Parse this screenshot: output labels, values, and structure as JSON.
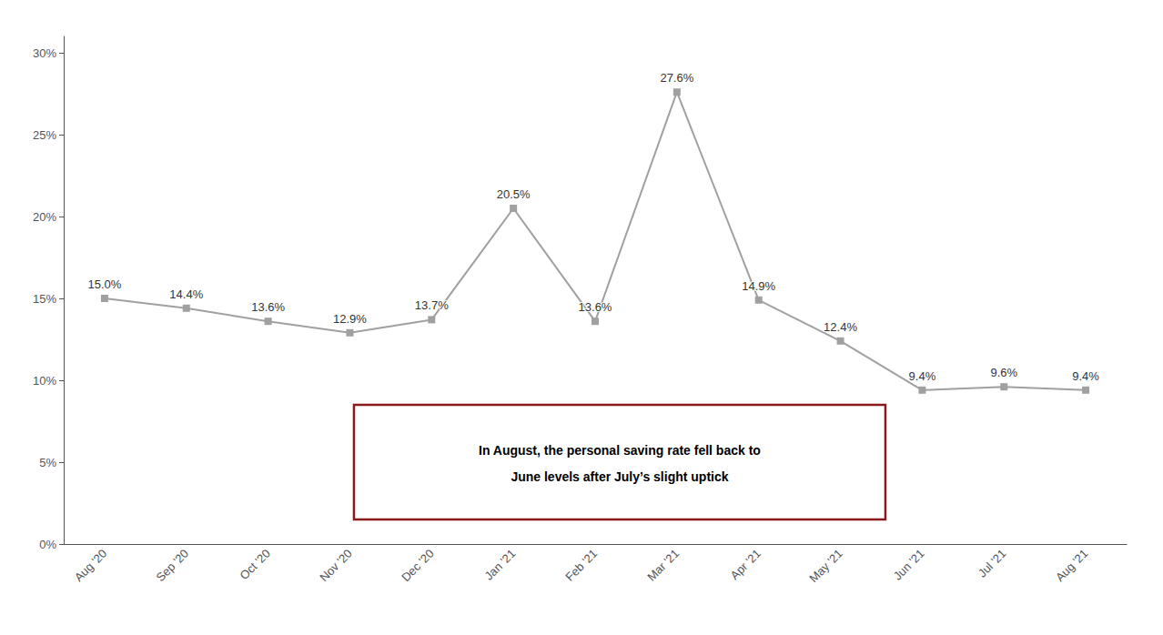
{
  "chart_data": {
    "type": "line",
    "categories": [
      "Aug '20",
      "Sep '20",
      "Oct '20",
      "Nov '20",
      "Dec '20",
      "Jan '21",
      "Feb '21",
      "Mar '21",
      "Apr '21",
      "May '21",
      "Jun '21",
      "Jul '21",
      "Aug '21"
    ],
    "values": [
      15.0,
      14.4,
      13.6,
      12.9,
      13.7,
      20.5,
      13.6,
      27.6,
      14.9,
      12.4,
      9.4,
      9.6,
      9.4
    ],
    "value_labels": [
      "15.0%",
      "14.4%",
      "13.6%",
      "12.9%",
      "13.7%",
      "20.5%",
      "13.6%",
      "27.6%",
      "14.9%",
      "12.4%",
      "9.4%",
      "9.6%",
      "9.4%"
    ],
    "data_labels": true,
    "color": "#a0a0a0",
    "marker": "square",
    "ylim": [
      0,
      31
    ],
    "yticks": [
      {
        "value": 0,
        "label": "0%"
      },
      {
        "value": 5,
        "label": "5%"
      },
      {
        "value": 10,
        "label": "10%"
      },
      {
        "value": 15,
        "label": "15%"
      },
      {
        "value": 20,
        "label": "20%"
      },
      {
        "value": 25,
        "label": "25%"
      },
      {
        "value": 30,
        "label": "30%"
      }
    ],
    "grid": false,
    "annotation": {
      "text": [
        "In August, the personal saving rate fell back to",
        "June levels after July’s slight uptick"
      ],
      "color": "#8B1A1A"
    }
  }
}
